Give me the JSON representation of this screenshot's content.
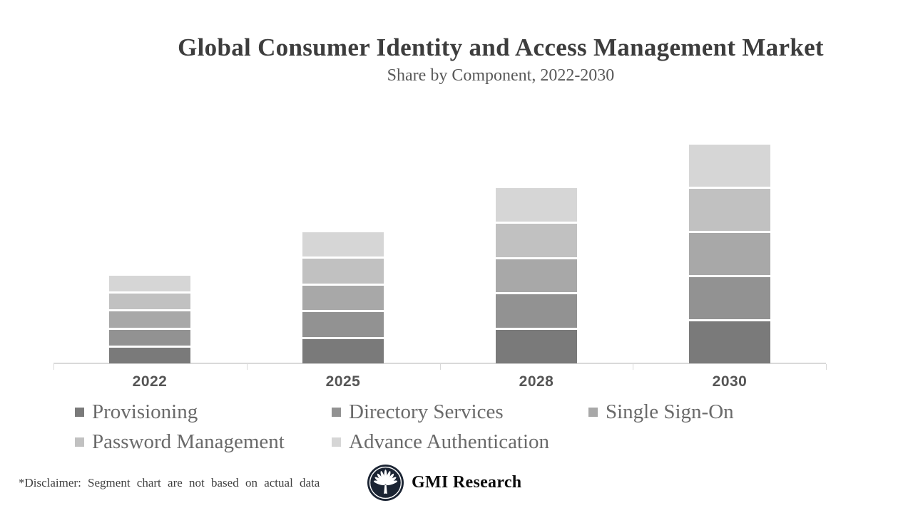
{
  "header": {
    "title": "Global Consumer Identity and Access Management Market",
    "subtitle": "Share by Component, 2022-2030"
  },
  "chart_data": {
    "type": "bar",
    "stacked": true,
    "title": "Global Consumer Identity and Access Management Market",
    "subtitle": "Share by Component, 2022-2030",
    "xlabel": "",
    "ylabel": "",
    "categories": [
      "2022",
      "2025",
      "2028",
      "2030"
    ],
    "series": [
      {
        "name": "Provisioning",
        "color": "#7a7a7a",
        "values": [
          0.4,
          0.6,
          0.8,
          1.0
        ]
      },
      {
        "name": "Directory Services",
        "color": "#929292",
        "values": [
          0.4,
          0.6,
          0.8,
          1.0
        ]
      },
      {
        "name": "Single Sign-On",
        "color": "#a8a8a8",
        "values": [
          0.4,
          0.6,
          0.8,
          1.0
        ]
      },
      {
        "name": "Password Management",
        "color": "#c1c1c1",
        "values": [
          0.4,
          0.6,
          0.8,
          1.0
        ]
      },
      {
        "name": "Advance Authentication",
        "color": "#d6d6d6",
        "values": [
          0.4,
          0.6,
          0.8,
          1.0
        ]
      }
    ],
    "category_totals": [
      2,
      3,
      4,
      5
    ],
    "value_axis_visible": false,
    "gridlines": false,
    "legend_position": "bottom"
  },
  "legend": {
    "items": [
      "Provisioning",
      "Directory Services",
      "Single Sign-On",
      "Password Management",
      "Advance Authentication"
    ]
  },
  "footer": {
    "disclaimer": "*Disclaimer:  Segment chart are not based on actual data",
    "brand": "GMI Research",
    "logo_icon": "palm-fan-icon"
  },
  "colors": {
    "title_text": "#3d3d3d",
    "subtitle_text": "#595959",
    "axis_line": "#d9d9d9",
    "axis_label_text": "#555555",
    "legend_text": "#6a6a6a",
    "logo_background": "#1b2433"
  }
}
